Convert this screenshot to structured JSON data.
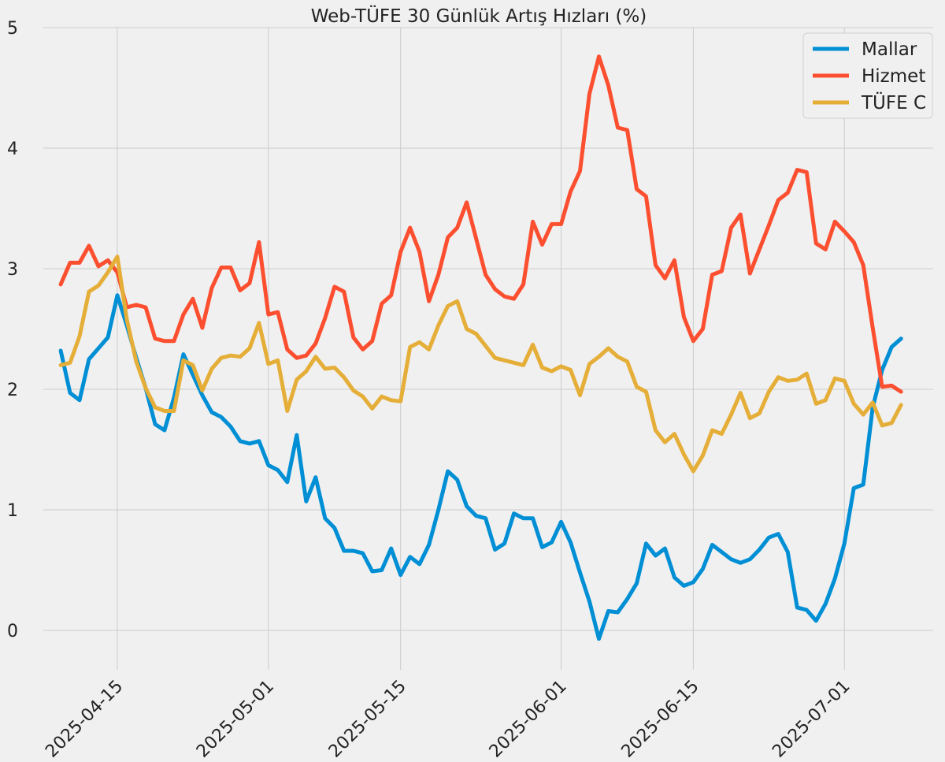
{
  "chart_data": {
    "type": "line",
    "title": "Web-TÜFE 30 Günlük Artış Hızları (%)",
    "xlabel": "",
    "ylabel": "",
    "ylim": [
      -0.25,
      5
    ],
    "y_ticks": [
      0,
      1,
      2,
      3,
      4,
      5
    ],
    "x_ticks": [
      "2025-04-15",
      "2025-05-01",
      "2025-05-15",
      "2025-06-01",
      "2025-06-15",
      "2025-07-01"
    ],
    "x_start": "2025-04-09",
    "grid": true,
    "legend_position": "top-right",
    "series": [
      {
        "name": "Mallar",
        "color": "#008fd5",
        "values": [
          2.32,
          1.97,
          1.91,
          2.25,
          2.34,
          2.43,
          2.78,
          2.53,
          2.26,
          2.01,
          1.71,
          1.66,
          1.93,
          2.29,
          2.12,
          1.95,
          1.81,
          1.77,
          1.69,
          1.57,
          1.55,
          1.57,
          1.37,
          1.33,
          1.23,
          1.62,
          1.07,
          1.27,
          0.93,
          0.85,
          0.66,
          0.66,
          0.64,
          0.49,
          0.5,
          0.68,
          0.46,
          0.61,
          0.55,
          0.71,
          1.0,
          1.32,
          1.25,
          1.03,
          0.95,
          0.93,
          0.67,
          0.72,
          0.97,
          0.93,
          0.93,
          0.69,
          0.73,
          0.9,
          0.73,
          0.48,
          0.24,
          -0.07,
          0.16,
          0.15,
          0.26,
          0.39,
          0.72,
          0.62,
          0.68,
          0.44,
          0.37,
          0.4,
          0.51,
          0.71,
          0.65,
          0.59,
          0.56,
          0.59,
          0.67,
          0.77,
          0.8,
          0.65,
          0.19,
          0.17,
          0.08,
          0.22,
          0.43,
          0.72,
          1.18,
          1.21,
          1.85,
          2.16,
          2.35,
          2.42
        ]
      },
      {
        "name": "Hizmet",
        "color": "#fc4f30",
        "values": [
          2.87,
          3.05,
          3.05,
          3.19,
          3.02,
          3.07,
          2.97,
          2.68,
          2.7,
          2.68,
          2.42,
          2.4,
          2.4,
          2.62,
          2.75,
          2.51,
          2.84,
          3.01,
          3.01,
          2.82,
          2.88,
          3.22,
          2.62,
          2.64,
          2.33,
          2.26,
          2.28,
          2.38,
          2.59,
          2.85,
          2.81,
          2.43,
          2.33,
          2.4,
          2.71,
          2.78,
          3.14,
          3.34,
          3.14,
          2.73,
          2.95,
          3.26,
          3.34,
          3.55,
          3.25,
          2.95,
          2.83,
          2.77,
          2.75,
          2.87,
          3.39,
          3.2,
          3.37,
          3.37,
          3.64,
          3.81,
          4.45,
          4.76,
          4.52,
          4.17,
          4.15,
          3.66,
          3.6,
          3.03,
          2.92,
          3.07,
          2.6,
          2.4,
          2.5,
          2.95,
          2.98,
          3.34,
          3.45,
          2.96,
          3.16,
          3.36,
          3.57,
          3.63,
          3.82,
          3.8,
          3.21,
          3.16,
          3.39,
          3.31,
          3.22,
          3.03,
          2.51,
          2.02,
          2.03,
          1.98
        ]
      },
      {
        "name": "TÜFE C",
        "color": "#e5ae38",
        "values": [
          2.2,
          2.22,
          2.44,
          2.81,
          2.86,
          2.97,
          3.1,
          2.58,
          2.23,
          2.01,
          1.85,
          1.82,
          1.82,
          2.24,
          2.2,
          1.99,
          2.17,
          2.26,
          2.28,
          2.27,
          2.34,
          2.55,
          2.21,
          2.24,
          1.82,
          2.08,
          2.15,
          2.27,
          2.17,
          2.18,
          2.1,
          1.99,
          1.94,
          1.84,
          1.94,
          1.91,
          1.9,
          2.35,
          2.39,
          2.33,
          2.53,
          2.69,
          2.73,
          2.5,
          2.46,
          2.36,
          2.26,
          2.24,
          2.22,
          2.2,
          2.37,
          2.18,
          2.15,
          2.19,
          2.16,
          1.95,
          2.21,
          2.27,
          2.34,
          2.27,
          2.23,
          2.02,
          1.98,
          1.66,
          1.56,
          1.63,
          1.46,
          1.32,
          1.45,
          1.66,
          1.63,
          1.79,
          1.97,
          1.76,
          1.8,
          1.98,
          2.1,
          2.07,
          2.08,
          2.13,
          1.88,
          1.91,
          2.09,
          2.07,
          1.88,
          1.79,
          1.89,
          1.7,
          1.72,
          1.87
        ]
      }
    ]
  }
}
